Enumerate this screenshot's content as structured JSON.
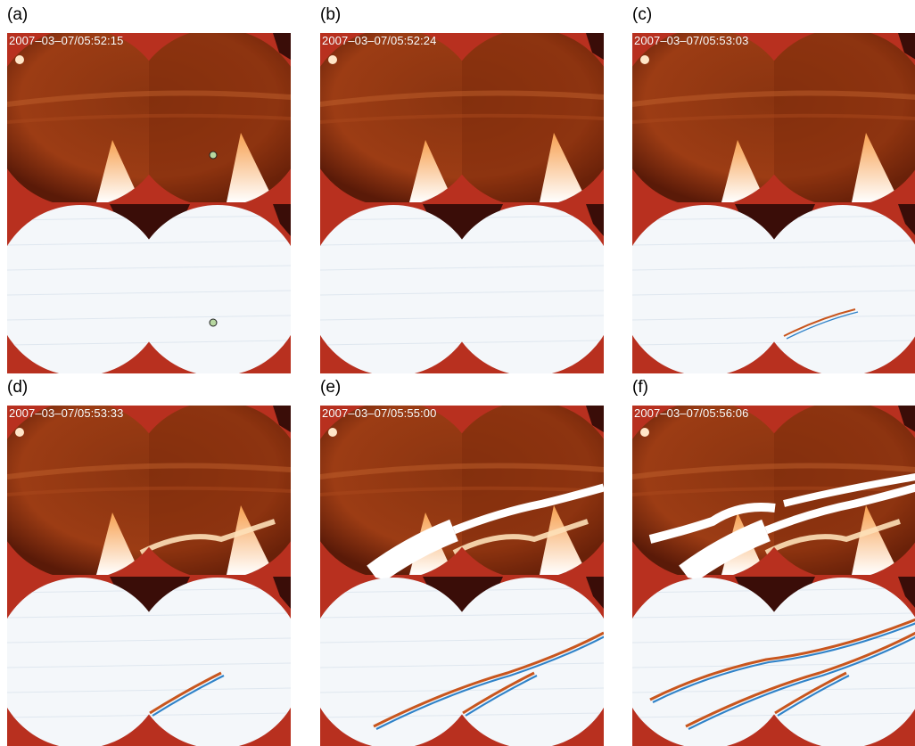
{
  "figure": {
    "panels": [
      {
        "label": "(a)",
        "timestamp": "2007–03–07/05:52:15",
        "stage": 0,
        "marker": true
      },
      {
        "label": "(b)",
        "timestamp": "2007–03–07/05:52:24",
        "stage": 0,
        "marker": false
      },
      {
        "label": "(c)",
        "timestamp": "2007–03–07/05:53:03",
        "stage": 1,
        "marker": false
      },
      {
        "label": "(d)",
        "timestamp": "2007–03–07/05:53:33",
        "stage": 2,
        "marker": false
      },
      {
        "label": "(e)",
        "timestamp": "2007–03–07/05:55:00",
        "stage": 3,
        "marker": false
      },
      {
        "label": "(f)",
        "timestamp": "2007–03–07/05:56:06",
        "stage": 4,
        "marker": false
      }
    ]
  },
  "colors": {
    "background_red": "#b8301f",
    "dark_patch": "#3a0d08",
    "aurora_dark": "#5a1a08",
    "aurora_mid": "#8a3410",
    "aurora_glow": "#f7a050",
    "diff_base": "#f4f7fa",
    "diff_blue": "#2f82c8",
    "diff_orange": "#c8561e",
    "marker_fill": "#b7d7a0"
  }
}
